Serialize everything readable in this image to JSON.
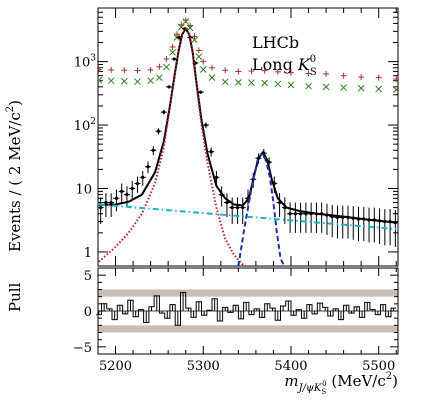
{
  "chart_data": {
    "type": "scatter",
    "main": {
      "ylabel": "Events / ( 2 MeV/c",
      "ylabel_sup": "2",
      "ylabel_close": ")",
      "yscale": "log",
      "ylim": [
        0.6,
        7000
      ],
      "yticks": [
        {
          "v": 1,
          "label": "1"
        },
        {
          "v": 10,
          "label": "10"
        },
        {
          "v": 100,
          "label": "10",
          "sup": "2"
        },
        {
          "v": 1000,
          "label": "10",
          "sup": "3"
        }
      ],
      "annotations": {
        "l1": "LHCb",
        "l2": "Long ",
        "ks": "K",
        "ks_sub": "S",
        "ks_sup": "0"
      },
      "series": [
        {
          "id": "data_red",
          "style": "marker-cross",
          "color": "#a83232",
          "x": [
            5181,
            5195,
            5210,
            5225,
            5240,
            5250,
            5258,
            5265,
            5270,
            5275,
            5280,
            5285,
            5290,
            5295,
            5300,
            5310,
            5325,
            5340,
            5355,
            5370,
            5385,
            5400,
            5420,
            5440,
            5460,
            5480,
            5500,
            5520
          ],
          "y": [
            750,
            740,
            730,
            725,
            740,
            830,
            1100,
            1700,
            2700,
            3800,
            4500,
            3700,
            2500,
            1500,
            1000,
            800,
            730,
            700,
            710,
            720,
            690,
            670,
            650,
            640,
            600,
            570,
            560,
            530
          ]
        },
        {
          "id": "data_green",
          "style": "marker-x",
          "color": "#2e7d1f",
          "x": [
            5181,
            5195,
            5210,
            5225,
            5240,
            5250,
            5258,
            5265,
            5270,
            5275,
            5280,
            5285,
            5290,
            5295,
            5300,
            5310,
            5325,
            5340,
            5355,
            5370,
            5385,
            5400,
            5420,
            5440,
            5460,
            5480,
            5500,
            5520
          ],
          "y": [
            510,
            500,
            490,
            485,
            500,
            560,
            820,
            1400,
            2400,
            3500,
            4300,
            3400,
            2200,
            1200,
            750,
            560,
            480,
            470,
            465,
            460,
            445,
            430,
            410,
            400,
            390,
            380,
            370,
            360
          ]
        },
        {
          "id": "data_black",
          "style": "marker-errorbar",
          "color": "#000000",
          "x": [
            5183,
            5189,
            5195,
            5201,
            5207,
            5213,
            5219,
            5225,
            5231,
            5237,
            5243,
            5249,
            5255,
            5261,
            5267,
            5273,
            5279,
            5285,
            5291,
            5297,
            5303,
            5309,
            5315,
            5321,
            5327,
            5333,
            5339,
            5345,
            5351,
            5357,
            5363,
            5369,
            5375,
            5381,
            5387,
            5393,
            5399,
            5405,
            5411,
            5417,
            5423,
            5429,
            5435,
            5441,
            5447,
            5453,
            5459,
            5465,
            5471,
            5477,
            5483,
            5489,
            5495,
            5501,
            5507,
            5513,
            5519
          ],
          "y": [
            5,
            6,
            6,
            7,
            9,
            8,
            10,
            12,
            15,
            22,
            40,
            80,
            160,
            400,
            1100,
            2400,
            3300,
            2400,
            950,
            330,
            100,
            38,
            15,
            8,
            6,
            5,
            5,
            5,
            7,
            14,
            30,
            36,
            26,
            12,
            6,
            5,
            4,
            4,
            4,
            4,
            4,
            4,
            4,
            3.8,
            3.6,
            3.5,
            3.5,
            3.5,
            3.4,
            3.3,
            3.3,
            3.2,
            3.2,
            3.1,
            3,
            3,
            2.9
          ]
        },
        {
          "id": "fit_total",
          "style": "line-solid",
          "color": "#000000",
          "x": [
            5181,
            5200,
            5215,
            5230,
            5245,
            5255,
            5262,
            5268,
            5272,
            5276,
            5280,
            5284,
            5288,
            5292,
            5298,
            5305,
            5315,
            5325,
            5335,
            5345,
            5352,
            5358,
            5363,
            5368,
            5373,
            5378,
            5385,
            5395,
            5410,
            5430,
            5460,
            5490,
            5520
          ],
          "y": [
            5.5,
            5.6,
            6.2,
            8,
            18,
            55,
            200,
            700,
            1500,
            2700,
            3300,
            2700,
            1400,
            500,
            120,
            35,
            11,
            7,
            5.6,
            5.4,
            7,
            16,
            30,
            37,
            28,
            14,
            7,
            5,
            4.4,
            4,
            3.6,
            3.2,
            2.9
          ]
        },
        {
          "id": "fit_signal_bd",
          "style": "line-dotted",
          "color": "#b22222",
          "x": [
            5181,
            5200,
            5215,
            5230,
            5245,
            5255,
            5262,
            5268,
            5272,
            5276,
            5280,
            5284,
            5288,
            5292,
            5298,
            5305,
            5315,
            5325,
            5335,
            5340,
            5344,
            5348
          ],
          "y": [
            0.7,
            1.2,
            2,
            4,
            12,
            45,
            190,
            680,
            1480,
            2680,
            3280,
            2680,
            1380,
            480,
            100,
            25,
            5,
            1.6,
            0.9,
            0.75,
            0.65,
            0.6
          ]
        },
        {
          "id": "fit_signal_bs",
          "style": "line-dashed",
          "color": "#1f2fb0",
          "x": [
            5340,
            5346,
            5352,
            5357,
            5362,
            5366,
            5369,
            5372,
            5376,
            5380,
            5384,
            5388,
            5392
          ],
          "y": [
            0.6,
            2,
            6,
            14,
            28,
            35,
            34,
            26,
            15,
            6,
            2,
            0.8,
            0.6
          ]
        },
        {
          "id": "fit_background",
          "style": "line-dashdot",
          "color": "#18b3c9",
          "x": [
            5181,
            5520
          ],
          "y": [
            5.6,
            2.3
          ]
        }
      ]
    },
    "pull": {
      "ylabel": "Pull",
      "ylim": [
        -6,
        6
      ],
      "band_inner": 2,
      "band_outer": 3,
      "yticks": [
        {
          "v": -5,
          "label": "−5"
        },
        {
          "v": 0,
          "label": "0"
        },
        {
          "v": 5,
          "label": "5"
        }
      ],
      "x": [
        5181,
        5187,
        5193,
        5199,
        5205,
        5211,
        5217,
        5223,
        5229,
        5235,
        5241,
        5247,
        5253,
        5259,
        5265,
        5271,
        5277,
        5283,
        5289,
        5295,
        5301,
        5307,
        5313,
        5319,
        5325,
        5331,
        5337,
        5343,
        5349,
        5355,
        5361,
        5367,
        5373,
        5379,
        5385,
        5391,
        5397,
        5403,
        5409,
        5415,
        5421,
        5427,
        5433,
        5439,
        5445,
        5451,
        5457,
        5463,
        5469,
        5475,
        5481,
        5487,
        5493,
        5499,
        5505,
        5511,
        5517
      ],
      "values": [
        -0.5,
        1.0,
        0.3,
        -1.2,
        0.8,
        -0.4,
        1.5,
        -0.8,
        0.2,
        -1.6,
        0.6,
        2.1,
        -0.3,
        -1.0,
        0.9,
        -2.0,
        2.6,
        0.4,
        -0.9,
        1.3,
        -0.6,
        0.1,
        1.7,
        -1.4,
        0.5,
        -0.2,
        0.8,
        -1.1,
        1.2,
        -0.5,
        0.3,
        -0.9,
        1.0,
        0.4,
        -1.3,
        0.7,
        1.4,
        -0.6,
        0.2,
        -1.0,
        0.9,
        -0.4,
        1.1,
        0.5,
        -0.7,
        0.3,
        -1.2,
        0.8,
        -0.3,
        0.6,
        -0.9,
        1.2,
        0.2,
        -0.5,
        0.9,
        -0.8,
        0.4
      ]
    },
    "x_axis": {
      "xlim": [
        5180,
        5522
      ],
      "ticks": [
        5200,
        5300,
        5400,
        5500
      ],
      "label_m": "m",
      "label_sub": "J/ψK",
      "label_subsub": "S",
      "label_subsup": "0",
      "label_unit": " (MeV/c",
      "label_unit_sup": "2",
      "label_close": ")"
    }
  }
}
